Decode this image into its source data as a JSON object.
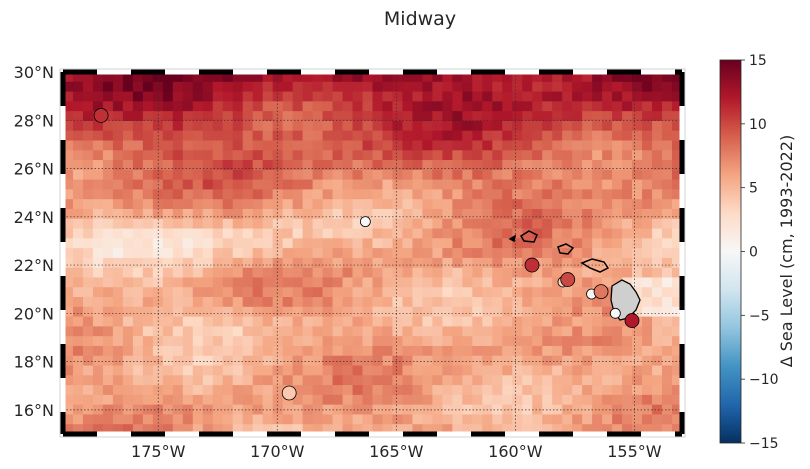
{
  "title": "Midway",
  "map": {
    "lon_range": [
      -179,
      -153
    ],
    "lat_range": [
      15,
      30
    ],
    "lat_ticks": [
      {
        "value": 30,
        "label": "30°N"
      },
      {
        "value": 28,
        "label": "28°N"
      },
      {
        "value": 26,
        "label": "26°N"
      },
      {
        "value": 24,
        "label": "24°N"
      },
      {
        "value": 22,
        "label": "22°N"
      },
      {
        "value": 20,
        "label": "20°N"
      },
      {
        "value": 18,
        "label": "18°N"
      },
      {
        "value": 16,
        "label": "16°N"
      }
    ],
    "lon_ticks": [
      {
        "value": -175,
        "label": "175°W"
      },
      {
        "value": -170,
        "label": "170°W"
      },
      {
        "value": -165,
        "label": "165°W"
      },
      {
        "value": -160,
        "label": "160°W"
      },
      {
        "value": -155,
        "label": "155°W"
      }
    ],
    "grid": "dotted",
    "stations": [
      {
        "lon": -177.4,
        "lat": 28.2,
        "value": 11,
        "size": "large"
      },
      {
        "lon": -166.3,
        "lat": 23.8,
        "value": 0,
        "size": "small"
      },
      {
        "lon": -169.5,
        "lat": 16.7,
        "value": 4,
        "size": "large"
      },
      {
        "lon": -159.3,
        "lat": 22.0,
        "value": 11,
        "size": "large"
      },
      {
        "lon": -158.0,
        "lat": 21.3,
        "value": 3,
        "size": "small"
      },
      {
        "lon": -157.8,
        "lat": 21.4,
        "value": 10,
        "size": "large"
      },
      {
        "lon": -156.8,
        "lat": 20.8,
        "value": 0,
        "size": "small"
      },
      {
        "lon": -156.4,
        "lat": 20.9,
        "value": 8,
        "size": "large"
      },
      {
        "lon": -155.8,
        "lat": 20.0,
        "value": 0,
        "size": "small"
      },
      {
        "lon": -155.1,
        "lat": 19.7,
        "value": 12,
        "size": "large"
      }
    ]
  },
  "colorbar": {
    "label": "Δ Sea Level (cm, 1993-2022)",
    "min": -15,
    "max": 15,
    "ticks": [
      {
        "value": 15,
        "label": "15"
      },
      {
        "value": 10,
        "label": "10"
      },
      {
        "value": 5,
        "label": "5"
      },
      {
        "value": 0,
        "label": "0"
      },
      {
        "value": -5,
        "label": "−5"
      },
      {
        "value": -10,
        "label": "−10"
      },
      {
        "value": -15,
        "label": "−15"
      }
    ],
    "colors": [
      "#053061",
      "#2166ac",
      "#4393c3",
      "#92c5de",
      "#d1e5f0",
      "#f7f7f7",
      "#fddbc7",
      "#f4a582",
      "#d6604d",
      "#b2182b",
      "#67001f"
    ]
  }
}
